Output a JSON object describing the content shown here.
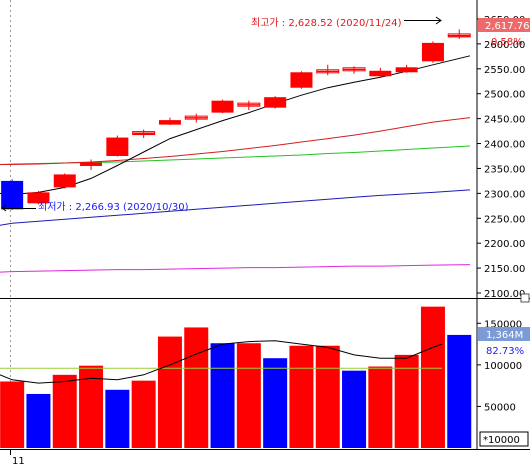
{
  "chart_data": [
    {
      "type": "candlestick",
      "yticks": [
        2650,
        2600,
        2550,
        2500,
        2450,
        2400,
        2350,
        2300,
        2250,
        2200,
        2150,
        2100
      ],
      "ylim": [
        2094,
        2668
      ],
      "current_price_label": "2,617.76",
      "current_change_label": "0.58%",
      "high_annotation": "최고가 : 2,628.52 (2020/11/24)",
      "low_annotation": "최저가 : 2,266.93 (2020/10/30)",
      "x_tick_label": "11",
      "candles": [
        {
          "o": 2325,
          "h": 2328,
          "l": 2267,
          "c": 2268
        },
        {
          "o": 2280,
          "h": 2305,
          "l": 2278,
          "c": 2302
        },
        {
          "o": 2312,
          "h": 2340,
          "l": 2310,
          "c": 2338
        },
        {
          "o": 2355,
          "h": 2368,
          "l": 2347,
          "c": 2362
        },
        {
          "o": 2375,
          "h": 2416,
          "l": 2374,
          "c": 2412
        },
        {
          "o": 2418,
          "h": 2428,
          "l": 2411,
          "c": 2422
        },
        {
          "o": 2438,
          "h": 2452,
          "l": 2437,
          "c": 2447
        },
        {
          "o": 2452,
          "h": 2460,
          "l": 2442,
          "c": 2453
        },
        {
          "o": 2462,
          "h": 2488,
          "l": 2461,
          "c": 2486
        },
        {
          "o": 2478,
          "h": 2486,
          "l": 2467,
          "c": 2479
        },
        {
          "o": 2472,
          "h": 2495,
          "l": 2470,
          "c": 2493
        },
        {
          "o": 2512,
          "h": 2545,
          "l": 2510,
          "c": 2543
        },
        {
          "o": 2545,
          "h": 2558,
          "l": 2537,
          "c": 2546
        },
        {
          "o": 2548,
          "h": 2555,
          "l": 2540,
          "c": 2550
        },
        {
          "o": 2535,
          "h": 2552,
          "l": 2533,
          "c": 2546
        },
        {
          "o": 2543,
          "h": 2558,
          "l": 2542,
          "c": 2553
        },
        {
          "o": 2565,
          "h": 2605,
          "l": 2562,
          "c": 2602
        },
        {
          "o": 2615,
          "h": 2629,
          "l": 2610,
          "c": 2618
        }
      ],
      "ma5": [
        2300,
        2298,
        2302,
        2312,
        2330,
        2356,
        2383,
        2410,
        2428,
        2446,
        2462,
        2480,
        2497,
        2512,
        2523,
        2533,
        2545,
        2558,
        2576
      ],
      "ma20": [
        2358,
        2358,
        2359,
        2361,
        2363,
        2366,
        2370,
        2374,
        2379,
        2384,
        2390,
        2396,
        2403,
        2410,
        2417,
        2425,
        2434,
        2443,
        2452
      ],
      "ma60": [
        2358,
        2359,
        2360,
        2361,
        2362,
        2363,
        2365,
        2367,
        2369,
        2371,
        2373,
        2375,
        2377,
        2380,
        2382,
        2385,
        2388,
        2391,
        2395
      ],
      "ma120": [
        2236,
        2240,
        2244,
        2248,
        2252,
        2256,
        2260,
        2264,
        2268,
        2272,
        2276,
        2280,
        2284,
        2288,
        2292,
        2296,
        2299,
        2302,
        2307
      ],
      "ma240": [
        2142,
        2143,
        2144,
        2145,
        2146,
        2147,
        2147,
        2148,
        2149,
        2150,
        2151,
        2151,
        2152,
        2153,
        2154,
        2154,
        2155,
        2156,
        2157
      ]
    },
    {
      "type": "bar",
      "scale_label": "*10000",
      "yticks": [
        150000,
        100000,
        50000
      ],
      "ylim": [
        0,
        178000
      ],
      "current_volume_label": "1,364M",
      "current_change_label": "82.73%",
      "values": [
        80000,
        65000,
        88000,
        99000,
        70000,
        81000,
        134000,
        145000,
        126000,
        126000,
        108000,
        123000,
        123000,
        93000,
        98000,
        112000,
        170000,
        136000
      ],
      "up": [
        true,
        false,
        true,
        true,
        false,
        true,
        true,
        true,
        false,
        true,
        false,
        true,
        true,
        false,
        true,
        true,
        true,
        false
      ],
      "ma_short": [
        88000,
        82000,
        78000,
        80000,
        84000,
        82000,
        88000,
        100000,
        113000,
        125000,
        128000,
        129000,
        125000,
        121000,
        112000,
        108000,
        108000,
        121000,
        125000
      ],
      "ma_long": [
        96000,
        96000,
        96000,
        96000,
        96000,
        96000,
        96000,
        96000,
        96000,
        96000,
        96000,
        96000,
        96000,
        96000,
        96000,
        96000,
        96000,
        96000,
        96000
      ]
    }
  ]
}
